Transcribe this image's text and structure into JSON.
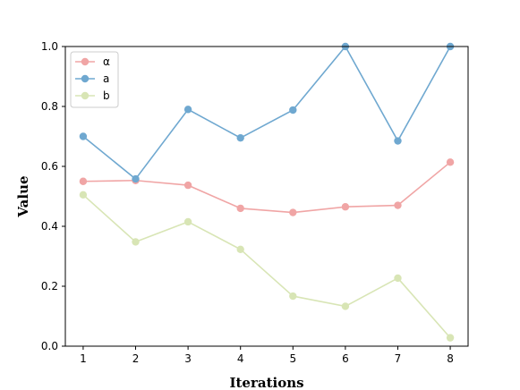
{
  "chart_data": {
    "type": "line",
    "title": "",
    "xlabel": "Iterations",
    "ylabel": "Value",
    "x": [
      1,
      2,
      3,
      4,
      5,
      6,
      7,
      8
    ],
    "xticks": [
      "1",
      "2",
      "3",
      "4",
      "5",
      "6",
      "7",
      "8"
    ],
    "yticks": [
      "0.0",
      "0.2",
      "0.4",
      "0.6",
      "0.8",
      "1.0"
    ],
    "ylim": [
      0,
      1
    ],
    "grid": false,
    "legend_position": "top-left",
    "series": [
      {
        "name": "α",
        "color": "#f0a5a5",
        "values": [
          0.55,
          0.553,
          0.537,
          0.46,
          0.446,
          0.465,
          0.47,
          0.614
        ]
      },
      {
        "name": "a",
        "color": "#6fa8d0",
        "values": [
          0.7,
          0.558,
          0.79,
          0.695,
          0.788,
          1.0,
          0.685,
          1.0
        ]
      },
      {
        "name": "b",
        "color": "#d8e5b5",
        "values": [
          0.505,
          0.348,
          0.415,
          0.323,
          0.167,
          0.133,
          0.227,
          0.028
        ]
      }
    ]
  }
}
